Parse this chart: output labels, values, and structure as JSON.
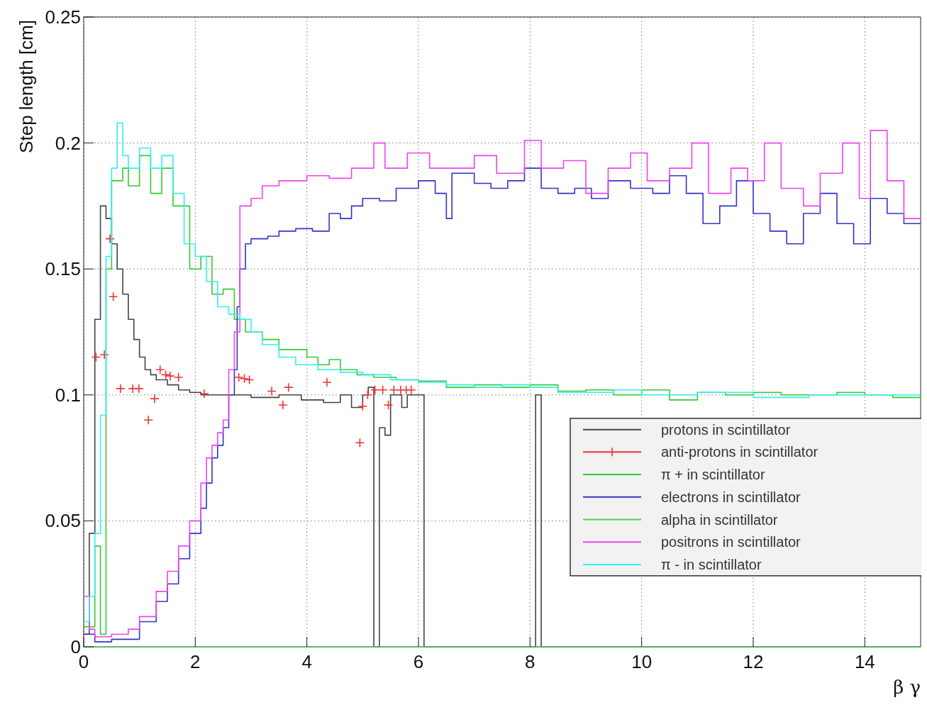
{
  "chart_data": {
    "type": "step",
    "xlabel": "β γ",
    "ylabel": "Step length [cm]",
    "xlim": [
      0,
      15
    ],
    "ylim": [
      0,
      0.25
    ],
    "xticks": [
      0,
      2,
      4,
      6,
      8,
      10,
      12,
      14
    ],
    "yticks": [
      0,
      0.05,
      0.1,
      0.15,
      0.2,
      0.25
    ],
    "grid": true,
    "legend": "bottom right",
    "line_style": "solid",
    "series": [
      {
        "name": "protons in scintillator",
        "color": "#444444",
        "x": [
          0,
          0.1,
          0.2,
          0.3,
          0.4,
          0.5,
          0.6,
          0.7,
          0.8,
          0.9,
          1.0,
          1.1,
          1.2,
          1.3,
          1.5,
          1.7,
          1.9,
          2.1,
          2.5,
          3.0,
          3.5,
          3.9,
          4.3,
          4.6,
          4.8,
          5.0,
          5.1,
          5.2,
          5.3,
          5.4,
          5.5,
          5.7,
          5.8,
          6.1,
          8.1,
          8.2,
          15
        ],
        "values": [
          0.005,
          0.045,
          0.13,
          0.175,
          0.17,
          0.16,
          0.15,
          0.14,
          0.13,
          0.122,
          0.115,
          0.11,
          0.108,
          0.106,
          0.104,
          0.102,
          0.101,
          0.1,
          0.1,
          0.099,
          0.1,
          0.098,
          0.097,
          0.1,
          0.095,
          0.1,
          0.103,
          0,
          0.087,
          0.084,
          0.1,
          0.095,
          0.1,
          0,
          0.1,
          0,
          0
        ]
      },
      {
        "name": "anti-protons in scintillator",
        "type": "scatter",
        "marker": "cross",
        "color": "#ee3333",
        "x": [
          0.22,
          0.37,
          0.47,
          0.53,
          0.66,
          0.88,
          0.99,
          1.16,
          1.27,
          1.37,
          1.47,
          1.55,
          1.7,
          2.16,
          2.78,
          2.88,
          2.97,
          3.37,
          3.57,
          3.67,
          4.36,
          4.95,
          5.0,
          5.09,
          5.22,
          5.36,
          5.46,
          5.56,
          5.68,
          5.78,
          5.87
        ],
        "values": [
          0.115,
          0.116,
          0.162,
          0.139,
          0.1025,
          0.1025,
          0.1025,
          0.09,
          0.0985,
          0.11,
          0.108,
          0.1075,
          0.107,
          0.1005,
          0.107,
          0.1065,
          0.106,
          0.1015,
          0.096,
          0.103,
          0.105,
          0.081,
          0.0955,
          0.1,
          0.102,
          0.102,
          0.096,
          0.102,
          0.102,
          0.102,
          0.102
        ]
      },
      {
        "name": "π + in scintillator",
        "color": "#33cc33",
        "x": [
          0,
          0.2,
          0.3,
          0.4,
          0.5,
          0.7,
          0.8,
          1.0,
          1.2,
          1.4,
          1.6,
          1.8,
          1.9,
          2.1,
          2.3,
          2.5,
          2.7,
          2.9,
          3.2,
          3.5,
          3.8,
          4.0,
          4.2,
          4.4,
          4.6,
          4.9,
          5.2,
          5.6,
          6.0,
          6.5,
          7.0,
          7.5,
          8.0,
          8.5,
          9.0,
          9.5,
          10.0,
          10.5,
          11.0,
          11.5,
          12.0,
          12.5,
          13.0,
          13.5,
          14.0,
          14.5,
          15
        ],
        "values": [
          0.008,
          0.04,
          0.005,
          0.15,
          0.185,
          0.19,
          0.183,
          0.195,
          0.18,
          0.19,
          0.175,
          0.175,
          0.15,
          0.155,
          0.14,
          0.142,
          0.13,
          0.125,
          0.122,
          0.118,
          0.118,
          0.115,
          0.112,
          0.114,
          0.11,
          0.108,
          0.107,
          0.106,
          0.1055,
          0.103,
          0.104,
          0.103,
          0.104,
          0.1015,
          0.102,
          0.1,
          0.102,
          0.098,
          0.101,
          0.1,
          0.101,
          0.1,
          0.1,
          0.101,
          0.1,
          0.099,
          0.099
        ]
      },
      {
        "name": "electrons in scintillator",
        "color": "#3333cc",
        "x": [
          0,
          0.2,
          0.5,
          1.0,
          1.3,
          1.5,
          1.7,
          1.9,
          2.1,
          2.2,
          2.3,
          2.4,
          2.5,
          2.6,
          2.7,
          2.75,
          2.8,
          2.9,
          3.0,
          3.3,
          3.5,
          3.8,
          4.1,
          4.4,
          4.6,
          4.8,
          5.0,
          5.3,
          5.6,
          6.0,
          6.3,
          6.5,
          6.6,
          7.0,
          7.3,
          7.6,
          7.9,
          8.2,
          8.5,
          8.8,
          9.1,
          9.4,
          9.8,
          10.2,
          10.5,
          10.8,
          11.1,
          11.4,
          11.7,
          12.0,
          12.3,
          12.6,
          12.9,
          13.2,
          13.5,
          13.8,
          14.1,
          14.4,
          14.7,
          15
        ],
        "values": [
          0.005,
          0.002,
          0.003,
          0.01,
          0.018,
          0.025,
          0.035,
          0.045,
          0.055,
          0.065,
          0.075,
          0.08,
          0.087,
          0.1,
          0.11,
          0.135,
          0.15,
          0.16,
          0.162,
          0.163,
          0.165,
          0.166,
          0.165,
          0.172,
          0.17,
          0.175,
          0.178,
          0.177,
          0.182,
          0.185,
          0.18,
          0.17,
          0.188,
          0.184,
          0.182,
          0.185,
          0.19,
          0.182,
          0.18,
          0.182,
          0.178,
          0.185,
          0.182,
          0.18,
          0.187,
          0.18,
          0.168,
          0.175,
          0.185,
          0.172,
          0.165,
          0.16,
          0.172,
          0.18,
          0.168,
          0.16,
          0.178,
          0.172,
          0.168,
          0.168
        ]
      },
      {
        "name": "alpha in scintillator",
        "color": "#55cc55",
        "x": [
          0,
          15
        ],
        "values": [
          0,
          0
        ]
      },
      {
        "name": "positrons in scintillator",
        "color": "#ee44ee",
        "x": [
          0,
          0.1,
          0.2,
          0.5,
          0.8,
          1.0,
          1.3,
          1.5,
          1.7,
          1.9,
          2.1,
          2.2,
          2.3,
          2.4,
          2.5,
          2.6,
          2.7,
          2.8,
          3.0,
          3.2,
          3.5,
          4.0,
          4.4,
          4.8,
          5.2,
          5.4,
          5.8,
          6.2,
          6.6,
          7.0,
          7.4,
          7.9,
          8.2,
          8.6,
          9.0,
          9.4,
          9.8,
          10.1,
          10.5,
          10.9,
          11.2,
          11.6,
          11.9,
          12.2,
          12.5,
          12.9,
          13.2,
          13.6,
          13.9,
          14.1,
          14.4,
          14.7,
          15
        ],
        "values": [
          0.02,
          0.007,
          0.004,
          0.005,
          0.007,
          0.012,
          0.022,
          0.03,
          0.04,
          0.05,
          0.065,
          0.075,
          0.08,
          0.085,
          0.09,
          0.11,
          0.125,
          0.175,
          0.178,
          0.183,
          0.185,
          0.187,
          0.186,
          0.19,
          0.2,
          0.19,
          0.196,
          0.19,
          0.19,
          0.195,
          0.188,
          0.201,
          0.19,
          0.193,
          0.18,
          0.19,
          0.196,
          0.185,
          0.19,
          0.2,
          0.18,
          0.19,
          0.185,
          0.2,
          0.182,
          0.175,
          0.188,
          0.2,
          0.178,
          0.205,
          0.185,
          0.17,
          0.17
        ]
      },
      {
        "name": "π - in scintillator",
        "color": "#33eeee",
        "x": [
          0,
          0.1,
          0.2,
          0.3,
          0.4,
          0.5,
          0.6,
          0.7,
          0.8,
          1.0,
          1.2,
          1.4,
          1.6,
          1.8,
          2.0,
          2.2,
          2.4,
          2.6,
          2.8,
          3.0,
          3.2,
          3.5,
          3.8,
          4.2,
          4.6,
          5.0,
          5.5,
          6.0,
          6.5,
          7.0,
          7.5,
          8.0,
          8.5,
          9.0,
          9.5,
          10.0,
          11.0,
          12.0,
          13.0,
          14.0,
          15
        ],
        "values": [
          0.01,
          0.02,
          0.045,
          0.092,
          0.155,
          0.19,
          0.208,
          0.195,
          0.19,
          0.198,
          0.19,
          0.195,
          0.18,
          0.16,
          0.155,
          0.145,
          0.135,
          0.132,
          0.13,
          0.125,
          0.12,
          0.115,
          0.112,
          0.11,
          0.109,
          0.108,
          0.106,
          0.105,
          0.104,
          0.103,
          0.104,
          0.103,
          0.101,
          0.101,
          0.102,
          0.1,
          0.101,
          0.099,
          0.1,
          0.1,
          0.1
        ]
      }
    ]
  }
}
